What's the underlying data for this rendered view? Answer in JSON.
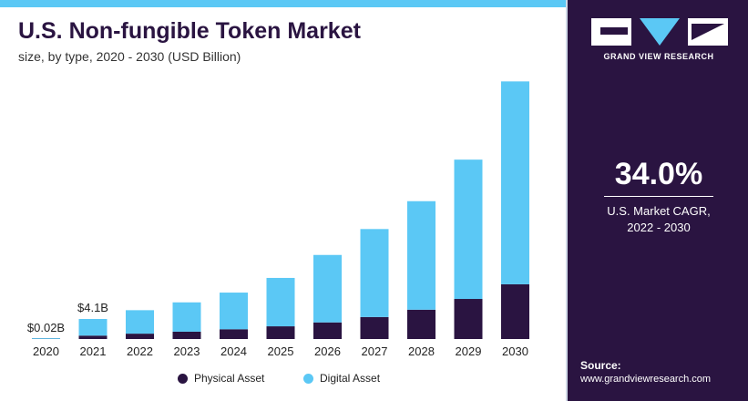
{
  "header": {
    "title": "U.S. Non-fungible Token Market",
    "subtitle": "size, by type, 2020 - 2030 (USD Billion)"
  },
  "sidebar": {
    "brand": "GRAND VIEW RESEARCH",
    "cagr_value": "34.0%",
    "cagr_label_line1": "U.S. Market CAGR,",
    "cagr_label_line2": "2022 - 2030",
    "source_label": "Source:",
    "source_url": "www.grandviewresearch.com"
  },
  "colors": {
    "physical": "#2a1441",
    "digital": "#5bc8f5",
    "panel": "#2a1441",
    "accent_bar": "#5bc8f5"
  },
  "chart_data": {
    "type": "bar",
    "stacked": true,
    "title": "U.S. Non-fungible Token Market",
    "subtitle": "size, by type, 2020 - 2030 (USD Billion)",
    "categories": [
      "2020",
      "2021",
      "2022",
      "2023",
      "2024",
      "2025",
      "2026",
      "2027",
      "2028",
      "2029",
      "2030"
    ],
    "series": [
      {
        "name": "Physical Asset",
        "values": [
          0.005,
          0.7,
          1.1,
          1.5,
          2.0,
          2.6,
          3.4,
          4.5,
          6.0,
          8.2,
          11.2
        ]
      },
      {
        "name": "Digital Asset",
        "values": [
          0.015,
          3.4,
          4.8,
          6.0,
          7.5,
          9.9,
          13.8,
          18.0,
          22.2,
          28.5,
          41.5
        ]
      }
    ],
    "data_labels": [
      {
        "category": "2020",
        "text": "$0.02B"
      },
      {
        "category": "2021",
        "text": "$4.1B"
      }
    ],
    "ylim": [
      0,
      55
    ],
    "grid": false,
    "legend_position": "bottom"
  },
  "legend": {
    "items": [
      {
        "label": "Physical Asset"
      },
      {
        "label": "Digital Asset"
      }
    ]
  }
}
